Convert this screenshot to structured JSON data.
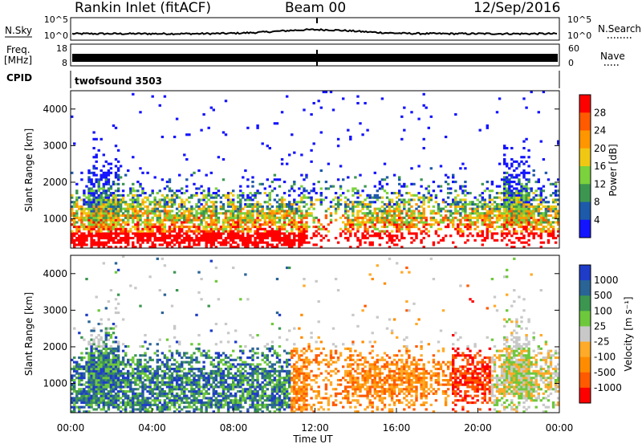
{
  "header": {
    "station": "Rankin Inlet (fitACF)",
    "beam": "Beam 00",
    "date": "12/Sep/2016"
  },
  "colors": {
    "series_black": "#000000",
    "frame": "#000000",
    "power_scale": [
      "#1414ff",
      "#1e5aaa",
      "#3c9650",
      "#7ad23c",
      "#f0c814",
      "#ff9600",
      "#ff5a00",
      "#ff0000"
    ],
    "velocity_scale": [
      "#ff0000",
      "#ff5a00",
      "#ff8c00",
      "#ffaa28",
      "#c8c8c8",
      "#6ec83c",
      "#3c9650",
      "#2a6496",
      "#1e3cc8"
    ]
  },
  "chart_data": [
    {
      "type": "line",
      "panel": "noise",
      "left_label": "N.Sky",
      "right_label": "N.Search",
      "left_ticks": [
        "10^5",
        "10^0"
      ],
      "right_ticks": [
        "10^5",
        "10^0"
      ]
    },
    {
      "type": "line",
      "panel": "frequency",
      "left_label_lines": [
        "Freq.",
        "[MHz]"
      ],
      "right_label": "Nave",
      "left_ticks": [
        "18",
        "8"
      ],
      "right_ticks": [
        "60",
        "0"
      ]
    },
    {
      "type": "table",
      "panel": "cpid",
      "label": "CPID",
      "value": "twofsound 3503"
    },
    {
      "type": "heatmap",
      "panel": "power",
      "ylabel": "Slant Range [km]",
      "yticks": [
        "1000",
        "2000",
        "3000",
        "4000"
      ],
      "ylim": [
        200,
        4500
      ],
      "colorbar_label": "Power [dB]",
      "colorbar_ticks": [
        "4",
        "8",
        "12",
        "16",
        "20",
        "24",
        "28"
      ]
    },
    {
      "type": "heatmap",
      "panel": "velocity",
      "ylabel": "Slant Range [km]",
      "yticks": [
        "1000",
        "2000",
        "3000",
        "4000"
      ],
      "ylim": [
        200,
        4500
      ],
      "xlabel": "Time UT",
      "xticks": [
        "00:00",
        "04:00",
        "08:00",
        "12:00",
        "16:00",
        "20:00",
        "00:00"
      ],
      "colorbar_label": "Velocity [m s⁻¹]",
      "colorbar_ticks": [
        "1000",
        "500",
        "100",
        "25",
        "-25",
        "-100",
        "-500",
        "-1000"
      ]
    }
  ]
}
